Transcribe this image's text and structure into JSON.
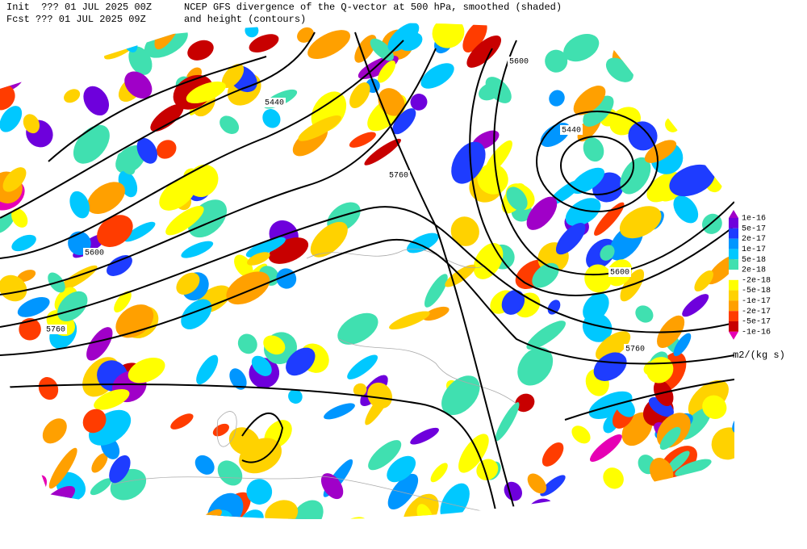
{
  "header": {
    "init": "Init  ??? 01 JUL 2025 00Z",
    "title": "NCEP GFS divergence of the Q-vector at 500 hPa, smoothed (shaded)",
    "fcst": "Fcst ??? 01 JUL 2025 09Z",
    "subtitle": "and height (contours)"
  },
  "contour_labels": [
    "5600",
    "5440",
    "5440",
    "5760",
    "5600",
    "5600",
    "5760",
    "5760"
  ],
  "colorbar": {
    "labels": [
      "1e-16",
      "5e-17",
      "2e-17",
      "1e-17",
      "5e-18",
      "2e-18",
      "-2e-18",
      "-5e-18",
      "-1e-17",
      "-2e-17",
      "-5e-17",
      "-1e-16"
    ],
    "units": "m2/(kg s)"
  }
}
